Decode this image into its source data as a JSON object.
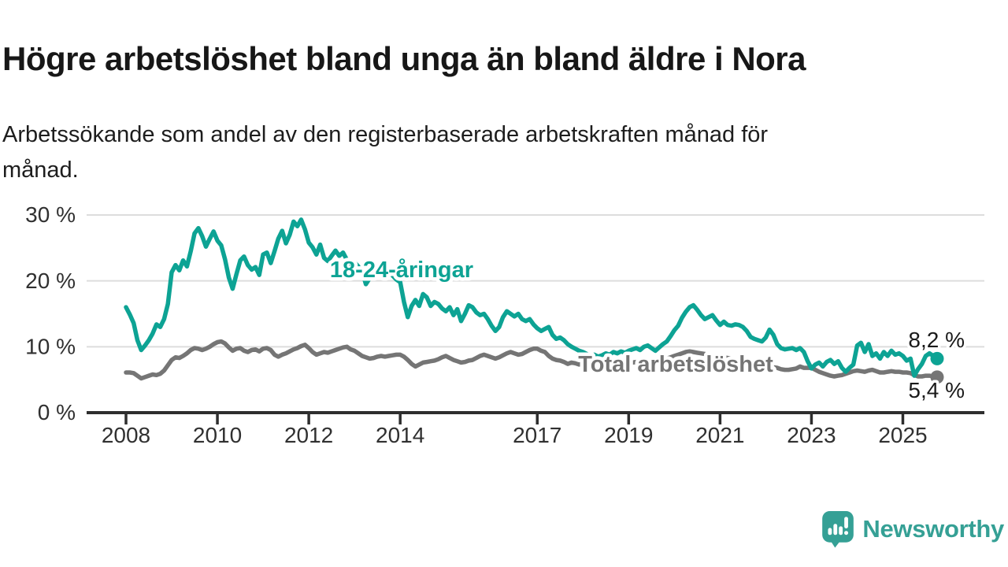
{
  "header": {
    "title": "Högre arbetslöshet bland unga än bland äldre i Nora",
    "subtitle_lines": [
      "Arbetssökande som andel av den registerbaserade arbetskraften månad för",
      "månad."
    ]
  },
  "branding": {
    "logo_text": "Newsworthy",
    "logo_icon": "bar-chart-speech-bubble-icon"
  },
  "colors": {
    "teal": "#0da394",
    "gray": "#757575",
    "axis": "#303030",
    "grid": "#dddddd",
    "text": "#1a1a1a",
    "logo_teal": "#35a095"
  },
  "chart_data": {
    "type": "line",
    "unit": "%",
    "frequency": "monthly",
    "start_month": "2008-01",
    "end_month": "2025-10",
    "ylim": [
      0,
      31
    ],
    "grid": true,
    "legend_position": "inline-labels",
    "y_ticks": [
      {
        "value": 0,
        "label": "0 %"
      },
      {
        "value": 10,
        "label": "10 %"
      },
      {
        "value": 20,
        "label": "20 %"
      },
      {
        "value": 30,
        "label": "30 %"
      }
    ],
    "x_ticks": [
      {
        "year": 2008,
        "label": "2008"
      },
      {
        "year": 2010,
        "label": "2010"
      },
      {
        "year": 2012,
        "label": "2012"
      },
      {
        "year": 2014,
        "label": "2014"
      },
      {
        "year": 2017,
        "label": "2017"
      },
      {
        "year": 2019,
        "label": "2019"
      },
      {
        "year": 2021,
        "label": "2021"
      },
      {
        "year": 2023,
        "label": "2023"
      },
      {
        "year": 2025,
        "label": "2025"
      }
    ],
    "series": [
      {
        "name": "18-24-åringar",
        "color": "#0da394",
        "end_label": "8,2 %",
        "end_value": 8.2,
        "values": [
          16.0,
          14.9,
          13.6,
          11.0,
          9.5,
          10.2,
          11.0,
          12.0,
          13.4,
          13.0,
          14.2,
          16.5,
          21.3,
          22.4,
          21.6,
          23.1,
          22.2,
          24.5,
          27.2,
          28.0,
          26.8,
          25.2,
          26.4,
          27.5,
          26.1,
          25.4,
          23.3,
          20.5,
          18.8,
          21.0,
          23.1,
          23.7,
          22.4,
          21.7,
          22.1,
          20.9,
          24.0,
          24.3,
          22.7,
          24.5,
          26.4,
          27.6,
          25.7,
          27.0,
          29.0,
          28.3,
          29.3,
          27.8,
          25.8,
          25.1,
          24.0,
          25.5,
          23.5,
          23.0,
          23.8,
          24.6,
          23.8,
          24.3,
          23.2,
          22.6,
          22.8,
          22.2,
          21.5,
          19.5,
          20.4,
          21.2,
          21.8,
          21.0,
          20.6,
          21.4,
          20.8,
          20.2,
          19.8,
          16.8,
          14.5,
          16.2,
          17.1,
          16.2,
          18.0,
          17.5,
          16.2,
          16.8,
          16.5,
          15.8,
          15.4,
          16.0,
          14.8,
          15.7,
          13.9,
          15.0,
          16.3,
          16.0,
          15.2,
          14.8,
          15.0,
          14.2,
          13.2,
          12.4,
          13.0,
          14.5,
          15.4,
          15.0,
          14.6,
          15.0,
          14.2,
          13.9,
          14.2,
          13.4,
          12.8,
          12.4,
          12.7,
          13.0,
          11.8,
          11.2,
          11.4,
          11.0,
          10.4,
          10.0,
          9.7,
          9.4,
          9.2,
          8.9,
          8.6,
          8.8,
          8.5,
          8.7,
          9.0,
          8.8,
          9.2,
          9.0,
          9.3,
          9.1,
          9.4,
          9.6,
          9.8,
          9.5,
          10.0,
          10.2,
          9.8,
          9.4,
          9.9,
          10.4,
          10.8,
          11.6,
          12.5,
          13.2,
          14.4,
          15.3,
          16.0,
          16.3,
          15.6,
          14.8,
          14.2,
          14.5,
          14.8,
          14.0,
          13.3,
          13.8,
          13.3,
          13.2,
          13.4,
          13.3,
          13.0,
          12.4,
          11.5,
          11.2,
          11.0,
          10.8,
          11.4,
          12.6,
          11.8,
          10.4,
          9.8,
          9.6,
          9.7,
          9.8,
          9.5,
          9.8,
          9.2,
          7.8,
          6.7,
          7.3,
          7.6,
          7.0,
          7.7,
          8.0,
          7.4,
          7.8,
          6.8,
          6.2,
          6.8,
          7.3,
          10.2,
          10.6,
          9.2,
          10.4,
          8.6,
          9.0,
          8.2,
          9.2,
          8.6,
          9.4,
          8.8,
          9.0,
          8.6,
          7.9,
          8.2,
          5.6,
          6.6,
          7.4,
          8.6,
          9.0,
          8.6,
          8.2
        ]
      },
      {
        "name": "Total arbetslöshet",
        "color": "#757575",
        "end_label": "5,4 %",
        "end_value": 5.4,
        "values": [
          6.1,
          6.1,
          6.0,
          5.6,
          5.2,
          5.4,
          5.6,
          5.8,
          5.7,
          5.9,
          6.4,
          7.2,
          8.0,
          8.4,
          8.3,
          8.6,
          9.0,
          9.5,
          9.8,
          9.7,
          9.5,
          9.7,
          10.0,
          10.4,
          10.7,
          10.8,
          10.5,
          9.9,
          9.4,
          9.7,
          9.8,
          9.4,
          9.2,
          9.5,
          9.6,
          9.3,
          9.7,
          9.8,
          9.5,
          8.8,
          8.5,
          8.8,
          9.0,
          9.3,
          9.6,
          9.8,
          10.1,
          10.3,
          9.8,
          9.2,
          8.8,
          9.0,
          9.2,
          9.1,
          9.3,
          9.5,
          9.7,
          9.9,
          10.0,
          9.6,
          9.4,
          9.0,
          8.6,
          8.4,
          8.2,
          8.3,
          8.5,
          8.6,
          8.5,
          8.6,
          8.7,
          8.8,
          8.8,
          8.5,
          8.0,
          7.4,
          7.0,
          7.3,
          7.6,
          7.7,
          7.8,
          7.9,
          8.1,
          8.4,
          8.6,
          8.3,
          8.0,
          7.8,
          7.6,
          7.7,
          7.9,
          8.0,
          8.3,
          8.6,
          8.8,
          8.6,
          8.4,
          8.2,
          8.4,
          8.7,
          9.0,
          9.2,
          9.0,
          8.8,
          8.9,
          9.2,
          9.5,
          9.7,
          9.7,
          9.4,
          9.2,
          8.6,
          8.2,
          8.0,
          7.9,
          7.7,
          7.4,
          7.6,
          7.5,
          7.3,
          7.4,
          7.2,
          7.1,
          7.0,
          7.1,
          7.2,
          7.3,
          7.2,
          7.1,
          7.2,
          7.3,
          7.4,
          7.5,
          7.6,
          7.7,
          7.6,
          7.7,
          7.8,
          7.9,
          7.8,
          7.9,
          8.0,
          8.2,
          8.4,
          8.6,
          8.8,
          9.0,
          9.2,
          9.3,
          9.2,
          9.1,
          9.0,
          8.9,
          8.8,
          8.7,
          8.6,
          8.5,
          8.4,
          8.3,
          8.2,
          8.1,
          8.0,
          7.8,
          7.6,
          7.4,
          7.3,
          7.2,
          7.1,
          7.0,
          7.0,
          6.9,
          6.8,
          6.6,
          6.5,
          6.5,
          6.6,
          6.7,
          7.0,
          6.8,
          6.8,
          6.8,
          6.5,
          6.2,
          6.0,
          5.8,
          5.6,
          5.5,
          5.6,
          5.7,
          5.9,
          6.1,
          6.3,
          6.4,
          6.3,
          6.2,
          6.4,
          6.5,
          6.3,
          6.1,
          6.1,
          6.2,
          6.3,
          6.2,
          6.2,
          6.1,
          6.1,
          6.0,
          5.7,
          5.5,
          5.5,
          5.6,
          5.6,
          5.5,
          5.4
        ]
      }
    ]
  }
}
